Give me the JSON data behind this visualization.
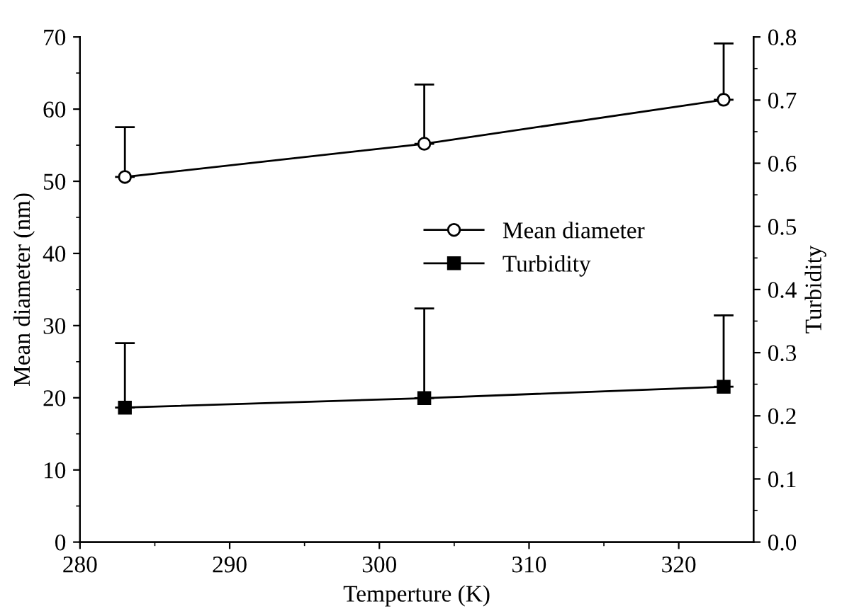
{
  "chart_data": {
    "type": "line",
    "xlabel": "Temperture (K)",
    "ylabel": "Mean diameter (nm)",
    "y2label": "Turbidity",
    "x": [
      283,
      303,
      323
    ],
    "series": [
      {
        "name": "Mean diameter",
        "color": "#000000",
        "marker": "circle",
        "values": [
          50.6,
          55.2,
          61.3
        ],
        "errors": [
          [
            50.6,
            57.5
          ],
          [
            55.2,
            63.4
          ],
          [
            61.3,
            69.1
          ]
        ]
      },
      {
        "name": "Turbidity",
        "color": "#000000",
        "marker": "square",
        "axis": "y2",
        "values": [
          0.213,
          0.228,
          0.246
        ],
        "errors": [
          [
            0.213,
            0.315
          ],
          [
            0.228,
            0.37
          ],
          [
            0.246,
            0.359
          ]
        ]
      }
    ],
    "xlim": [
      280,
      325
    ],
    "xticks": [
      280,
      290,
      300,
      310,
      320
    ],
    "ylim": [
      0,
      70
    ],
    "yticks": [
      0,
      10,
      20,
      30,
      40,
      50,
      60,
      70
    ],
    "y2lim": [
      0,
      0.8
    ],
    "y2ticks": [
      {
        "value": 0,
        "label": "0.0"
      },
      0.1,
      0.2,
      0.3,
      0.4,
      0.5,
      0.6,
      0.7,
      0.8
    ],
    "grid": false,
    "legend": "right",
    "line_style": "solid"
  }
}
